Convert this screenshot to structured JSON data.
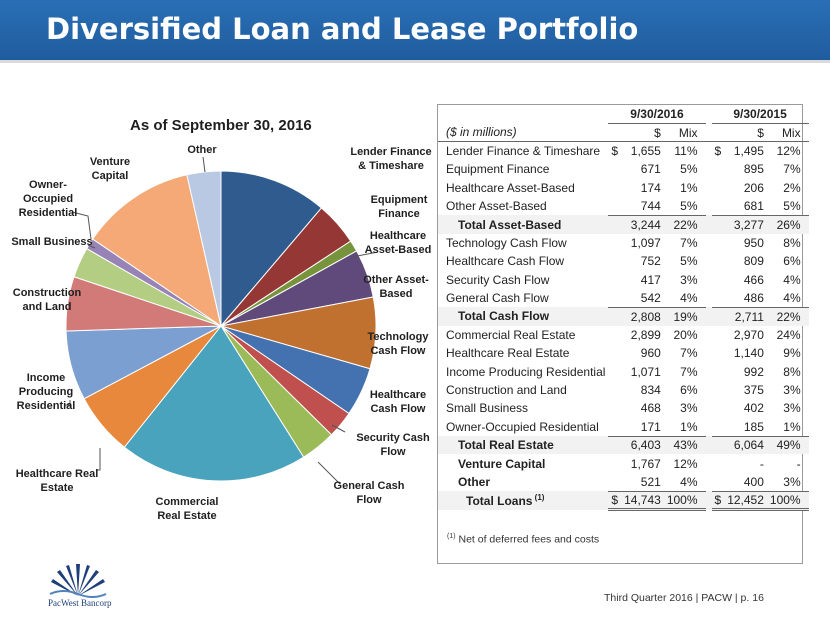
{
  "header": {
    "title": "Diversified Loan and Lease Portfolio",
    "color": "#1f5c9e"
  },
  "chart_data": {
    "type": "pie",
    "title": "As of September 30, 2016",
    "slices": [
      {
        "label": "Lender Finance & Timeshare",
        "value": 1655,
        "color": "#2f5b8e"
      },
      {
        "label": "Equipment Finance",
        "value": 671,
        "color": "#953735"
      },
      {
        "label": "Healthcare Asset-Based",
        "value": 174,
        "color": "#77933c"
      },
      {
        "label": "Other Asset-Based",
        "value": 744,
        "color": "#604a7b"
      },
      {
        "label": "Technology Cash Flow",
        "value": 1097,
        "color": "#c0712f"
      },
      {
        "label": "Healthcare Cash Flow",
        "value": 752,
        "color": "#4472b0"
      },
      {
        "label": "Security Cash Flow",
        "value": 417,
        "color": "#c0504d"
      },
      {
        "label": "General Cash Flow",
        "value": 542,
        "color": "#9bbb59"
      },
      {
        "label": "Commercial Real Estate",
        "value": 2899,
        "color": "#4aa3bd"
      },
      {
        "label": "Healthcare Real Estate",
        "value": 960,
        "color": "#e8883c"
      },
      {
        "label": "Income Producing Residential",
        "value": 1071,
        "color": "#7b9fd1"
      },
      {
        "label": "Construction and Land",
        "value": 834,
        "color": "#d17a77"
      },
      {
        "label": "Small Business",
        "value": 468,
        "color": "#b3cd82"
      },
      {
        "label": "Owner-Occupied Residential",
        "value": 171,
        "color": "#9883b7"
      },
      {
        "label": "Venture Capital",
        "value": 1767,
        "color": "#f5a976"
      },
      {
        "label": "Other",
        "value": 521,
        "color": "#b9c9e3"
      }
    ],
    "display_labels": [
      [
        "Lender Finance",
        "& Timeshare"
      ],
      [
        "Equipment",
        "Finance"
      ],
      [
        "Healthcare",
        "Asset-Based"
      ],
      [
        "Other Asset-",
        "Based"
      ],
      [
        "Technology",
        "Cash Flow"
      ],
      [
        "Healthcare",
        "Cash Flow"
      ],
      [
        "Security Cash",
        "Flow"
      ],
      [
        "General Cash",
        "Flow"
      ],
      [
        "Commercial",
        "Real Estate"
      ],
      [
        "Healthcare Real",
        "Estate"
      ],
      [
        "Income",
        "Producing",
        "Residential"
      ],
      [
        "Construction",
        "and Land"
      ],
      [
        "Small Business"
      ],
      [
        "Owner-",
        "Occupied",
        "Residential"
      ],
      [
        "Venture",
        "Capital"
      ],
      [
        "Other"
      ]
    ]
  },
  "table": {
    "period1": "9/30/2016",
    "period2": "9/30/2015",
    "units": "($ in millions)",
    "col_dollar": "$",
    "col_mix": "Mix",
    "rows": [
      {
        "label": "Lender Finance & Timeshare",
        "cur1": "$",
        "v1": "1,655",
        "m1": "11%",
        "cur2": "$",
        "v2": "1,495",
        "m2": "12%"
      },
      {
        "label": "Equipment Finance",
        "v1": "671",
        "m1": "5%",
        "v2": "895",
        "m2": "7%"
      },
      {
        "label": "Healthcare Asset-Based",
        "v1": "174",
        "m1": "1%",
        "v2": "206",
        "m2": "2%"
      },
      {
        "label": "Other Asset-Based",
        "v1": "744",
        "m1": "5%",
        "v2": "681",
        "m2": "5%"
      },
      {
        "label": "Total Asset-Based",
        "v1": "3,244",
        "m1": "22%",
        "v2": "3,277",
        "m2": "26%"
      },
      {
        "label": "Technology Cash Flow",
        "v1": "1,097",
        "m1": "7%",
        "v2": "950",
        "m2": "8%"
      },
      {
        "label": "Healthcare Cash Flow",
        "v1": "752",
        "m1": "5%",
        "v2": "809",
        "m2": "6%"
      },
      {
        "label": "Security Cash Flow",
        "v1": "417",
        "m1": "3%",
        "v2": "466",
        "m2": "4%"
      },
      {
        "label": "General Cash Flow",
        "v1": "542",
        "m1": "4%",
        "v2": "486",
        "m2": "4%"
      },
      {
        "label": "Total Cash Flow",
        "v1": "2,808",
        "m1": "19%",
        "v2": "2,711",
        "m2": "22%"
      },
      {
        "label": "Commercial Real Estate",
        "v1": "2,899",
        "m1": "20%",
        "v2": "2,970",
        "m2": "24%"
      },
      {
        "label": "Healthcare Real Estate",
        "v1": "960",
        "m1": "7%",
        "v2": "1,140",
        "m2": "9%"
      },
      {
        "label": "Income Producing Residential",
        "v1": "1,071",
        "m1": "7%",
        "v2": "992",
        "m2": "8%"
      },
      {
        "label": "Construction and Land",
        "v1": "834",
        "m1": "6%",
        "v2": "375",
        "m2": "3%"
      },
      {
        "label": "Small Business",
        "v1": "468",
        "m1": "3%",
        "v2": "402",
        "m2": "3%"
      },
      {
        "label": "Owner-Occupied Residential",
        "v1": "171",
        "m1": "1%",
        "v2": "185",
        "m2": "1%"
      },
      {
        "label": "Total Real Estate",
        "v1": "6,403",
        "m1": "43%",
        "v2": "6,064",
        "m2": "49%"
      },
      {
        "label": "Venture Capital",
        "v1": "1,767",
        "m1": "12%",
        "v2": "-",
        "m2": "-"
      },
      {
        "label": "Other",
        "v1": "521",
        "m1": "4%",
        "v2": "400",
        "m2": "3%"
      },
      {
        "label": "Total Loans",
        "sup": "(1)",
        "cur1": "$",
        "v1": "14,743",
        "m1": "100%",
        "cur2": "$",
        "v2": "12,452",
        "m2": "100%"
      }
    ]
  },
  "footnote": {
    "mark": "(1)",
    "text": "Net of deferred fees and costs"
  },
  "footer": {
    "text": "Third Quarter 2016 | PACW | p. 16"
  },
  "logo": {
    "text": "PacWest Bancorp"
  }
}
